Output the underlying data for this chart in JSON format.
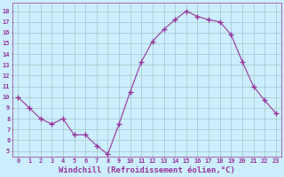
{
  "x": [
    0,
    1,
    2,
    3,
    4,
    5,
    6,
    7,
    8,
    9,
    10,
    11,
    12,
    13,
    14,
    15,
    16,
    17,
    18,
    19,
    20,
    21,
    22,
    23
  ],
  "y": [
    10,
    9,
    8,
    7.5,
    8,
    6.5,
    6.5,
    5.5,
    4.7,
    7.5,
    10.5,
    13.3,
    15.2,
    16.3,
    17.2,
    18,
    17.5,
    17.2,
    17,
    15.8,
    13.3,
    11,
    9.7,
    8.5
  ],
  "line_color": "#993399",
  "marker": "+",
  "marker_size": 4,
  "background_color": "#cceeff",
  "grid_color": "#aacccc",
  "tick_color": "#993399",
  "xlabel": "Windchill (Refroidissement éolien,°C)",
  "xlabel_fontsize": 6.5,
  "ylabel_ticks": [
    5,
    6,
    7,
    8,
    9,
    10,
    11,
    12,
    13,
    14,
    15,
    16,
    17,
    18
  ],
  "ylim": [
    4.5,
    18.8
  ],
  "xlim": [
    -0.5,
    23.5
  ],
  "xticks": [
    0,
    1,
    2,
    3,
    4,
    5,
    6,
    7,
    8,
    9,
    10,
    11,
    12,
    13,
    14,
    15,
    16,
    17,
    18,
    19,
    20,
    21,
    22,
    23
  ]
}
